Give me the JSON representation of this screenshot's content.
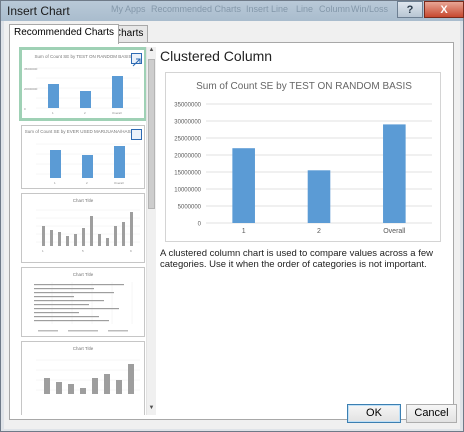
{
  "window": {
    "title": "Insert Chart",
    "help_label": "?",
    "close_label": "X",
    "ghost_labels": [
      "My Apps",
      "Recommended Charts",
      "Insert Line",
      "Line",
      "Column",
      "Win/Loss"
    ]
  },
  "tabs": [
    {
      "label": "Recommended Charts",
      "active": true
    },
    {
      "label": "All Charts",
      "active": false
    }
  ],
  "thumbnails": [
    {
      "title": "Sum of Count SE by TEST ON RANDOM BASIS",
      "selected": true
    },
    {
      "title": "Sum of Count SE by EVER USED MARIJUANA/HASHISH",
      "selected": false
    },
    {
      "title": "Chart Title",
      "selected": false
    },
    {
      "title": "Chart Title",
      "selected": false
    },
    {
      "title": "Chart Title",
      "selected": false
    }
  ],
  "preview": {
    "heading": "Clustered Column",
    "description": "A clustered column chart is used to compare values across a few categories. Use it when the order of categories is not important."
  },
  "chart_data": {
    "type": "bar",
    "title": "Sum of Count SE by TEST ON RANDOM BASIS",
    "categories": [
      "1",
      "2",
      "Overall"
    ],
    "values": [
      22000000,
      15500000,
      29000000
    ],
    "y_ticks": [
      "0",
      "5000000",
      "10000000",
      "15000000",
      "20000000",
      "25000000",
      "30000000",
      "35000000"
    ],
    "ylim": [
      0,
      35000000
    ],
    "bar_color": "#5b9bd5",
    "grid": true
  },
  "buttons": {
    "ok": "OK",
    "cancel": "Cancel"
  },
  "colors": {
    "accent": "#5b9bd5",
    "selected_thumb_border": "#9fd1b5",
    "close_button": "#c7492f"
  }
}
